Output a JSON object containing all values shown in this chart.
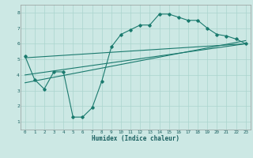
{
  "bg_color": "#cce8e4",
  "grid_color": "#b0d8d2",
  "line_color": "#1a7a6e",
  "xlabel": "Humidex (Indice chaleur)",
  "ylim": [
    0.5,
    8.5
  ],
  "xlim": [
    -0.5,
    23.5
  ],
  "yticks": [
    1,
    2,
    3,
    4,
    5,
    6,
    7,
    8
  ],
  "xticks": [
    0,
    1,
    2,
    3,
    4,
    5,
    6,
    7,
    8,
    9,
    10,
    11,
    12,
    13,
    14,
    15,
    16,
    17,
    18,
    19,
    20,
    21,
    22,
    23
  ],
  "curve1_x": [
    0,
    1,
    2,
    3,
    4,
    5,
    6,
    7,
    8,
    9,
    10,
    11,
    12,
    13,
    14,
    15,
    16,
    17,
    18,
    19,
    20,
    21,
    22,
    23
  ],
  "curve1_y": [
    5.2,
    3.7,
    3.1,
    4.2,
    4.2,
    1.3,
    1.3,
    1.9,
    3.6,
    5.8,
    6.6,
    6.9,
    7.2,
    7.2,
    7.9,
    7.9,
    7.7,
    7.5,
    7.5,
    7.0,
    6.6,
    6.5,
    6.3,
    6.0
  ],
  "curve2_x": [
    0,
    23
  ],
  "curve2_y": [
    5.1,
    6.0
  ],
  "curve3_x": [
    0,
    23
  ],
  "curve3_y": [
    3.5,
    6.2
  ],
  "curve4_x": [
    0,
    23
  ],
  "curve4_y": [
    4.0,
    6.0
  ]
}
